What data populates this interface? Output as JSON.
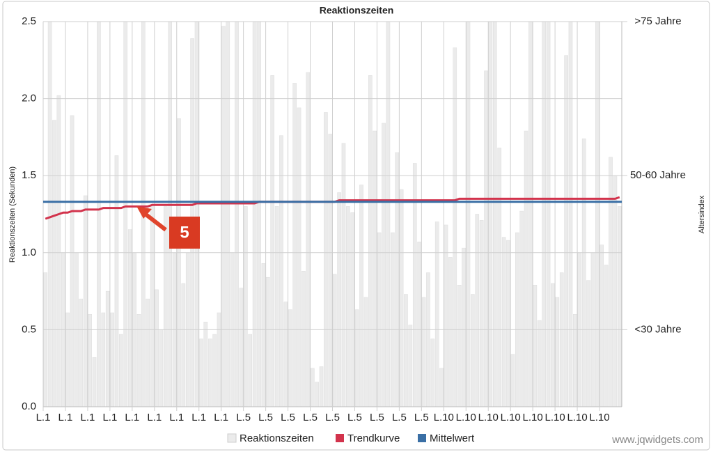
{
  "chart_data": {
    "type": "bar",
    "title": "Reaktionszeiten",
    "y_label": "Reaktionszeiten (Sekunden)",
    "y2_label": "Altersindex",
    "annotation": "5",
    "source": "www.jqwidgets.com",
    "grid": true,
    "categories": [
      "L.1",
      null,
      null,
      null,
      null,
      "L.1",
      null,
      null,
      null,
      null,
      "L.1",
      null,
      null,
      null,
      null,
      "L.1",
      null,
      null,
      null,
      null,
      "L.1",
      null,
      null,
      null,
      null,
      "L.1",
      null,
      null,
      null,
      null,
      "L.1",
      null,
      null,
      null,
      null,
      "L.1",
      null,
      null,
      null,
      null,
      "L.1",
      null,
      null,
      null,
      null,
      "L.5",
      null,
      null,
      null,
      null,
      "L.5",
      null,
      null,
      null,
      null,
      "L.5",
      null,
      null,
      null,
      null,
      "L.5",
      null,
      null,
      null,
      null,
      "L.5",
      null,
      null,
      null,
      null,
      "L.5",
      null,
      null,
      null,
      null,
      "L.5",
      null,
      null,
      null,
      null,
      "L.5",
      null,
      null,
      null,
      null,
      "L.5",
      null,
      null,
      null,
      null,
      "L.10",
      null,
      null,
      null,
      null,
      "L.10",
      null,
      null,
      null,
      null,
      "L.10",
      null,
      null,
      null,
      null,
      "L.10",
      null,
      null,
      null,
      null,
      "L.10",
      null,
      null,
      null,
      null,
      "L.10",
      null,
      null,
      null,
      null,
      "L.10",
      null,
      null,
      null,
      null,
      "L.10",
      null,
      null,
      null,
      null
    ],
    "series": [
      {
        "name": "Reaktionszeiten",
        "kind": "bar",
        "color": "#ebebeb",
        "values": [
          0.87,
          2.5,
          1.86,
          2.02,
          1.0,
          0.61,
          1.89,
          1.0,
          0.7,
          1.37,
          0.6,
          0.32,
          2.5,
          0.61,
          0.75,
          0.61,
          1.63,
          0.47,
          2.5,
          1.15,
          1.0,
          0.6,
          2.5,
          0.7,
          1.3,
          0.76,
          0.5,
          1.3,
          2.5,
          1.0,
          1.87,
          0.8,
          1.0,
          2.39,
          2.5,
          0.44,
          0.55,
          0.44,
          0.47,
          0.61,
          2.47,
          2.5,
          1.0,
          2.5,
          0.77,
          1.3,
          0.47,
          2.5,
          2.5,
          0.93,
          0.84,
          2.15,
          1.3,
          1.76,
          0.68,
          0.63,
          2.1,
          1.94,
          0.88,
          2.17,
          0.25,
          0.16,
          0.26,
          1.91,
          1.77,
          0.86,
          1.39,
          1.71,
          1.3,
          1.26,
          0.63,
          1.44,
          0.71,
          2.15,
          1.79,
          1.13,
          1.84,
          2.5,
          1.13,
          1.65,
          1.41,
          0.73,
          0.53,
          1.58,
          1.07,
          0.71,
          0.87,
          0.44,
          1.2,
          0.25,
          1.18,
          0.97,
          2.33,
          0.79,
          1.03,
          2.5,
          0.73,
          1.25,
          1.21,
          2.18,
          2.5,
          2.5,
          1.68,
          1.1,
          1.08,
          0.34,
          1.13,
          1.27,
          1.79,
          2.5,
          0.79,
          0.56,
          2.5,
          2.5,
          0.8,
          0.71,
          0.87,
          2.28,
          2.5,
          0.6,
          1.0,
          1.74,
          0.82,
          1.0,
          2.5,
          1.05,
          0.92,
          1.62,
          1.5,
          1.3
        ]
      },
      {
        "name": "Trendkurve",
        "kind": "line",
        "color": "#d2334c",
        "values": [
          1.22,
          1.23,
          1.24,
          1.25,
          1.26,
          1.26,
          1.27,
          1.27,
          1.27,
          1.28,
          1.28,
          1.28,
          1.28,
          1.29,
          1.29,
          1.29,
          1.29,
          1.29,
          1.3,
          1.3,
          1.3,
          1.3,
          1.3,
          1.3,
          1.31,
          1.31,
          1.31,
          1.31,
          1.31,
          1.31,
          1.31,
          1.31,
          1.31,
          1.31,
          1.32,
          1.32,
          1.32,
          1.32,
          1.32,
          1.32,
          1.32,
          1.32,
          1.32,
          1.32,
          1.32,
          1.32,
          1.32,
          1.32,
          1.33,
          1.33,
          1.33,
          1.33,
          1.33,
          1.33,
          1.33,
          1.33,
          1.33,
          1.33,
          1.33,
          1.33,
          1.33,
          1.33,
          1.33,
          1.33,
          1.33,
          1.33,
          1.34,
          1.34,
          1.34,
          1.34,
          1.34,
          1.34,
          1.34,
          1.34,
          1.34,
          1.34,
          1.34,
          1.34,
          1.34,
          1.34,
          1.34,
          1.34,
          1.34,
          1.34,
          1.34,
          1.34,
          1.34,
          1.34,
          1.34,
          1.34,
          1.34,
          1.34,
          1.34,
          1.35,
          1.35,
          1.35,
          1.35,
          1.35,
          1.35,
          1.35,
          1.35,
          1.35,
          1.35,
          1.35,
          1.35,
          1.35,
          1.35,
          1.35,
          1.35,
          1.35,
          1.35,
          1.35,
          1.35,
          1.35,
          1.35,
          1.35,
          1.35,
          1.35,
          1.35,
          1.35,
          1.35,
          1.35,
          1.35,
          1.35,
          1.35,
          1.35,
          1.35,
          1.35,
          1.35,
          1.36
        ]
      },
      {
        "name": "Mittelwert",
        "kind": "hline",
        "color": "#3a6fa5",
        "value": 1.33
      }
    ],
    "ylim": [
      0,
      2.5
    ],
    "yticks": [
      {
        "value": 0,
        "label": "0.0"
      },
      0.5,
      {
        "value": 1,
        "label": "1.0"
      },
      1.5,
      {
        "value": 2,
        "label": "2.0"
      },
      2.5
    ],
    "y2lim": [
      0,
      2.5
    ],
    "y2ticks": [
      {
        "value": 0.5,
        "label": "<30 Jahre"
      },
      {
        "value": 1.5,
        "label": "50-60 Jahre"
      },
      {
        "value": 2.5,
        "label": ">75 Jahre"
      }
    ]
  }
}
